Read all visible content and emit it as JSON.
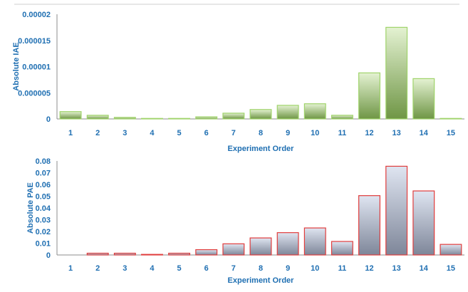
{
  "chart_data": [
    {
      "id": "iae",
      "type": "bar",
      "categories": [
        "1",
        "2",
        "3",
        "4",
        "5",
        "6",
        "7",
        "8",
        "9",
        "10",
        "11",
        "12",
        "13",
        "14",
        "15"
      ],
      "values": [
        1.4e-06,
        7e-07,
        3e-07,
        1e-07,
        1e-07,
        4e-07,
        1.1e-06,
        1.8e-06,
        2.6e-06,
        2.9e-06,
        7e-07,
        8.8e-06,
        1.75e-05,
        7.7e-06,
        1e-07
      ],
      "xlabel": "Experiment Order",
      "ylabel": "Absolute IAE",
      "ylim": [
        0,
        2e-05
      ],
      "yticks": [
        0,
        5e-06,
        1e-05,
        1.5e-05,
        2e-05
      ],
      "ytick_labels": [
        "0",
        "0.000005",
        "0.00001",
        "0.000015",
        "0.00002"
      ],
      "colors": {
        "fill_top": "#e4f2d2",
        "fill_bottom": "#6f9645",
        "edge": "#9fd36a"
      },
      "grid": false
    },
    {
      "id": "pae",
      "type": "bar",
      "categories": [
        "1",
        "2",
        "3",
        "4",
        "5",
        "6",
        "7",
        "8",
        "9",
        "10",
        "11",
        "12",
        "13",
        "14",
        "15"
      ],
      "values": [
        0.0,
        0.0015,
        0.0015,
        0.0005,
        0.0015,
        0.0045,
        0.0095,
        0.0145,
        0.019,
        0.023,
        0.0115,
        0.0505,
        0.0755,
        0.0545,
        0.009
      ],
      "xlabel": "Experiment Order",
      "ylabel": "Absolute PAE",
      "ylim": [
        0,
        0.08
      ],
      "yticks": [
        0,
        0.01,
        0.02,
        0.03,
        0.04,
        0.05,
        0.06,
        0.07,
        0.08
      ],
      "ytick_labels": [
        "0",
        "0.01",
        "0.02",
        "0.03",
        "0.04",
        "0.05",
        "0.06",
        "0.07",
        "0.08"
      ],
      "colors": {
        "fill_top": "#dfe5f1",
        "fill_bottom": "#7e8699",
        "edge": "#e03c3c"
      },
      "grid": false
    }
  ]
}
